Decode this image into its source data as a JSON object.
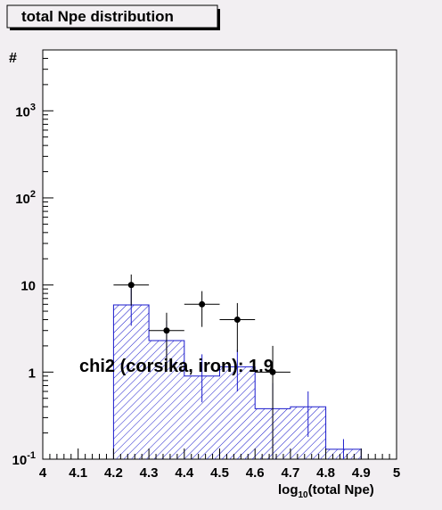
{
  "title": "total Npe distribution",
  "chart_data": {
    "type": "histogram",
    "title": "total Npe distribution",
    "ylabel": "#",
    "xlabel": "log",
    "xlabel_subscript": "10",
    "xlabel_rest": "(total Npe)",
    "annotation": "chi2 (corsika, iron): 1.9",
    "x_range": [
      4.0,
      5.0
    ],
    "y_range": [
      0.1,
      5000
    ],
    "y_scale": "log",
    "x_tick_labels": [
      "4",
      "4.1",
      "4.2",
      "4.3",
      "4.4",
      "4.5",
      "4.6",
      "4.7",
      "4.8",
      "4.9",
      "5"
    ],
    "x_tick_values": [
      4.0,
      4.1,
      4.2,
      4.3,
      4.4,
      4.5,
      4.6,
      4.7,
      4.8,
      4.9,
      5.0
    ],
    "y_tick_labels": [
      {
        "base": "10",
        "exp": "-1",
        "value": 0.1
      },
      {
        "base": "1",
        "exp": "",
        "value": 1
      },
      {
        "base": "10",
        "exp": "",
        "value": 10
      },
      {
        "base": "10",
        "exp": "2",
        "value": 100
      },
      {
        "base": "10",
        "exp": "3",
        "value": 1000
      }
    ],
    "series": [
      {
        "kind": "histogram",
        "color": "#1a1acc",
        "bins": [
          {
            "x0": 4.2,
            "x1": 4.3,
            "y": 5.9,
            "err_low": 3.4,
            "err_high": 9.6
          },
          {
            "x0": 4.3,
            "x1": 4.4,
            "y": 2.3,
            "err_low": 1.1,
            "err_high": 3.9
          },
          {
            "x0": 4.4,
            "x1": 4.5,
            "y": 0.9,
            "err_low": 0.45,
            "err_high": 1.6
          },
          {
            "x0": 4.5,
            "x1": 4.6,
            "y": 1.15,
            "err_low": 0.6,
            "err_high": 1.8
          },
          {
            "x0": 4.6,
            "x1": 4.7,
            "y": 0.38,
            "err_low": 0.1,
            "err_high": 0.75
          },
          {
            "x0": 4.7,
            "x1": 4.8,
            "y": 0.4,
            "err_low": 0.18,
            "err_high": 0.6
          },
          {
            "x0": 4.8,
            "x1": 4.9,
            "y": 0.13,
            "err_low": 0.1,
            "err_high": 0.17
          }
        ]
      },
      {
        "kind": "points",
        "color": "#000000",
        "points": [
          {
            "x": 4.25,
            "y": 10,
            "y_low": 5.8,
            "y_high": 13.2
          },
          {
            "x": 4.35,
            "y": 3,
            "y_low": 1.2,
            "y_high": 4.8
          },
          {
            "x": 4.45,
            "y": 6,
            "y_low": 3.3,
            "y_high": 8.5
          },
          {
            "x": 4.55,
            "y": 4,
            "y_low": 1.7,
            "y_high": 6.2
          },
          {
            "x": 4.65,
            "y": 1,
            "y_low": 0.1,
            "y_high": 2.0
          }
        ]
      }
    ]
  }
}
